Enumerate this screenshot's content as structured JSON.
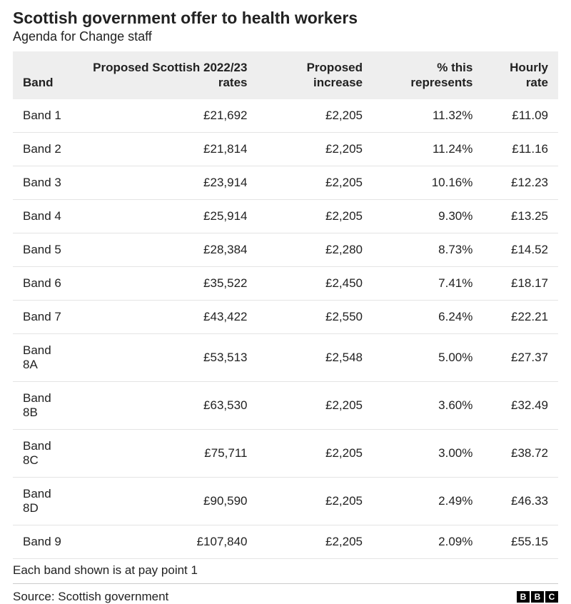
{
  "title": "Scottish government offer to health workers",
  "subtitle": "Agenda for Change staff",
  "table": {
    "columns": [
      "Band",
      "Proposed Scottish 2022/23 rates",
      "Proposed increase",
      "% this represents",
      "Hourly rate"
    ],
    "col_align": [
      "left",
      "right",
      "right",
      "right",
      "right"
    ],
    "col_widths_pct": [
      14,
      22,
      22,
      22,
      20
    ],
    "header_bg": "#eeeeee",
    "row_border_color": "#e4e4e4",
    "font_size_pt": 17,
    "rows": [
      [
        "Band 1",
        "£21,692",
        "£2,205",
        "11.32%",
        "£11.09"
      ],
      [
        "Band 2",
        "£21,814",
        "£2,205",
        "11.24%",
        "£11.16"
      ],
      [
        "Band 3",
        "£23,914",
        "£2,205",
        "10.16%",
        "£12.23"
      ],
      [
        "Band 4",
        "£25,914",
        "£2,205",
        "9.30%",
        "£13.25"
      ],
      [
        "Band 5",
        "£28,384",
        "£2,280",
        "8.73%",
        "£14.52"
      ],
      [
        "Band 6",
        "£35,522",
        "£2,450",
        "7.41%",
        "£18.17"
      ],
      [
        "Band 7",
        "£43,422",
        "£2,550",
        "6.24%",
        "£22.21"
      ],
      [
        "Band 8A",
        "£53,513",
        "£2,548",
        "5.00%",
        "£27.37"
      ],
      [
        "Band 8B",
        "£63,530",
        "£2,205",
        "3.60%",
        "£32.49"
      ],
      [
        "Band 8C",
        "£75,711",
        "£2,205",
        "3.00%",
        "£38.72"
      ],
      [
        "Band 8D",
        "£90,590",
        "£2,205",
        "2.49%",
        "£46.33"
      ],
      [
        "Band 9",
        "£107,840",
        "£2,205",
        "2.09%",
        "£55.15"
      ]
    ]
  },
  "footnote": "Each band shown is at pay point 1",
  "source": "Source: Scottish government",
  "logo": {
    "letters": [
      "B",
      "B",
      "C"
    ],
    "box_bg": "#000000",
    "box_fg": "#ffffff"
  },
  "colors": {
    "background": "#ffffff",
    "text": "#222222",
    "divider": "#cccccc"
  }
}
